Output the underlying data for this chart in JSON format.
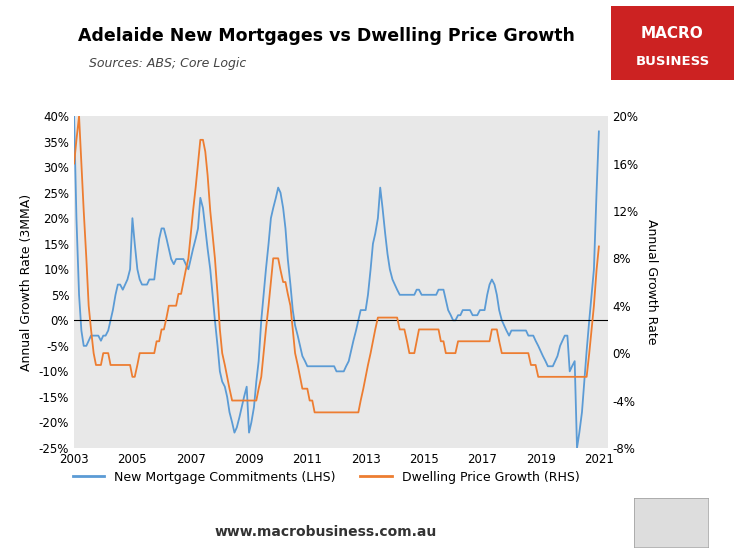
{
  "title": "Adelaide New Mortgages vs Dwelling Price Growth",
  "subtitle": "Sources: ABS; Core Logic",
  "ylabel_left": "Annual Growth Rate (3MMA)",
  "ylabel_right": "Annual Growth Rate",
  "ylim_left": [
    -25,
    40
  ],
  "ylim_right": [
    -8,
    20
  ],
  "yticks_left": [
    -25,
    -20,
    -15,
    -10,
    -5,
    0,
    5,
    10,
    15,
    20,
    25,
    30,
    35,
    40
  ],
  "yticks_right": [
    -8,
    -4,
    0,
    4,
    8,
    12,
    16,
    20
  ],
  "background_color": "#e8e8e8",
  "figure_background": "#ffffff",
  "lhs_color": "#5B9BD5",
  "rhs_color": "#ED7D31",
  "watermark": "www.macrobusiness.com.au",
  "legend_lhs": "New Mortgage Commitments (LHS)",
  "legend_rhs": "Dwelling Price Growth (RHS)",
  "logo_color": "#cc2222",
  "xticks": [
    2003,
    2005,
    2007,
    2009,
    2011,
    2013,
    2015,
    2017,
    2019,
    2021
  ],
  "lhs_x": [
    2003.0,
    2003.08,
    2003.17,
    2003.25,
    2003.33,
    2003.42,
    2003.5,
    2003.58,
    2003.67,
    2003.75,
    2003.83,
    2003.92,
    2004.0,
    2004.08,
    2004.17,
    2004.25,
    2004.33,
    2004.42,
    2004.5,
    2004.58,
    2004.67,
    2004.75,
    2004.83,
    2004.92,
    2005.0,
    2005.08,
    2005.17,
    2005.25,
    2005.33,
    2005.42,
    2005.5,
    2005.58,
    2005.67,
    2005.75,
    2005.83,
    2005.92,
    2006.0,
    2006.08,
    2006.17,
    2006.25,
    2006.33,
    2006.42,
    2006.5,
    2006.58,
    2006.67,
    2006.75,
    2006.83,
    2006.92,
    2007.0,
    2007.08,
    2007.17,
    2007.25,
    2007.33,
    2007.42,
    2007.5,
    2007.58,
    2007.67,
    2007.75,
    2007.83,
    2007.92,
    2008.0,
    2008.08,
    2008.17,
    2008.25,
    2008.33,
    2008.42,
    2008.5,
    2008.58,
    2008.67,
    2008.75,
    2008.83,
    2008.92,
    2009.0,
    2009.08,
    2009.17,
    2009.25,
    2009.33,
    2009.42,
    2009.5,
    2009.58,
    2009.67,
    2009.75,
    2009.83,
    2009.92,
    2010.0,
    2010.08,
    2010.17,
    2010.25,
    2010.33,
    2010.42,
    2010.5,
    2010.58,
    2010.67,
    2010.75,
    2010.83,
    2010.92,
    2011.0,
    2011.08,
    2011.17,
    2011.25,
    2011.33,
    2011.42,
    2011.5,
    2011.58,
    2011.67,
    2011.75,
    2011.83,
    2011.92,
    2012.0,
    2012.08,
    2012.17,
    2012.25,
    2012.33,
    2012.42,
    2012.5,
    2012.58,
    2012.67,
    2012.75,
    2012.83,
    2012.92,
    2013.0,
    2013.08,
    2013.17,
    2013.25,
    2013.33,
    2013.42,
    2013.5,
    2013.58,
    2013.67,
    2013.75,
    2013.83,
    2013.92,
    2014.0,
    2014.08,
    2014.17,
    2014.25,
    2014.33,
    2014.42,
    2014.5,
    2014.58,
    2014.67,
    2014.75,
    2014.83,
    2014.92,
    2015.0,
    2015.08,
    2015.17,
    2015.25,
    2015.33,
    2015.42,
    2015.5,
    2015.58,
    2015.67,
    2015.75,
    2015.83,
    2015.92,
    2016.0,
    2016.08,
    2016.17,
    2016.25,
    2016.33,
    2016.42,
    2016.5,
    2016.58,
    2016.67,
    2016.75,
    2016.83,
    2016.92,
    2017.0,
    2017.08,
    2017.17,
    2017.25,
    2017.33,
    2017.42,
    2017.5,
    2017.58,
    2017.67,
    2017.75,
    2017.83,
    2017.92,
    2018.0,
    2018.08,
    2018.17,
    2018.25,
    2018.33,
    2018.42,
    2018.5,
    2018.58,
    2018.67,
    2018.75,
    2018.83,
    2018.92,
    2019.0,
    2019.08,
    2019.17,
    2019.25,
    2019.33,
    2019.42,
    2019.5,
    2019.58,
    2019.67,
    2019.75,
    2019.83,
    2019.92,
    2020.0,
    2020.08,
    2020.17,
    2020.25,
    2020.33,
    2020.42,
    2020.5,
    2020.58,
    2020.67,
    2020.75,
    2020.83,
    2020.92,
    2021.0
  ],
  "lhs_y": [
    40,
    20,
    5,
    -2,
    -5,
    -5,
    -4,
    -3,
    -3,
    -3,
    -3,
    -4,
    -3,
    -3,
    -2,
    0,
    2,
    5,
    7,
    7,
    6,
    7,
    8,
    10,
    20,
    15,
    10,
    8,
    7,
    7,
    7,
    8,
    8,
    8,
    12,
    16,
    18,
    18,
    16,
    14,
    12,
    11,
    12,
    12,
    12,
    12,
    11,
    10,
    12,
    14,
    16,
    18,
    24,
    22,
    18,
    14,
    10,
    5,
    0,
    -5,
    -10,
    -12,
    -13,
    -15,
    -18,
    -20,
    -22,
    -21,
    -19,
    -17,
    -15,
    -13,
    -22,
    -20,
    -17,
    -12,
    -8,
    0,
    5,
    10,
    15,
    20,
    22,
    24,
    26,
    25,
    22,
    18,
    12,
    7,
    2,
    -1,
    -3,
    -5,
    -7,
    -8,
    -9,
    -9,
    -9,
    -9,
    -9,
    -9,
    -9,
    -9,
    -9,
    -9,
    -9,
    -9,
    -10,
    -10,
    -10,
    -10,
    -9,
    -8,
    -6,
    -4,
    -2,
    0,
    2,
    2,
    2,
    5,
    10,
    15,
    17,
    20,
    26,
    22,
    17,
    13,
    10,
    8,
    7,
    6,
    5,
    5,
    5,
    5,
    5,
    5,
    5,
    6,
    6,
    5,
    5,
    5,
    5,
    5,
    5,
    5,
    6,
    6,
    6,
    4,
    2,
    1,
    0,
    0,
    1,
    1,
    2,
    2,
    2,
    2,
    1,
    1,
    1,
    2,
    2,
    2,
    5,
    7,
    8,
    7,
    5,
    2,
    0,
    -1,
    -2,
    -3,
    -2,
    -2,
    -2,
    -2,
    -2,
    -2,
    -2,
    -3,
    -3,
    -3,
    -4,
    -5,
    -6,
    -7,
    -8,
    -9,
    -9,
    -9,
    -8,
    -7,
    -5,
    -4,
    -3,
    -3,
    -10,
    -9,
    -8,
    -25,
    -22,
    -18,
    -12,
    -6,
    0,
    5,
    10,
    25,
    37
  ],
  "rhs_y": [
    16,
    18,
    20,
    16,
    12,
    8,
    4,
    2,
    0,
    -1,
    -1,
    -1,
    0,
    0,
    0,
    -1,
    -1,
    -1,
    -1,
    -1,
    -1,
    -1,
    -1,
    -1,
    -2,
    -2,
    -1,
    0,
    0,
    0,
    0,
    0,
    0,
    0,
    1,
    1,
    2,
    2,
    3,
    4,
    4,
    4,
    4,
    5,
    5,
    6,
    7,
    8,
    10,
    12,
    14,
    16,
    18,
    18,
    17,
    15,
    12,
    10,
    8,
    5,
    2,
    0,
    -1,
    -2,
    -3,
    -4,
    -4,
    -4,
    -4,
    -4,
    -4,
    -4,
    -4,
    -4,
    -4,
    -4,
    -3,
    -2,
    0,
    2,
    4,
    6,
    8,
    8,
    8,
    7,
    6,
    6,
    5,
    4,
    2,
    0,
    -1,
    -2,
    -3,
    -3,
    -3,
    -4,
    -4,
    -5,
    -5,
    -5,
    -5,
    -5,
    -5,
    -5,
    -5,
    -5,
    -5,
    -5,
    -5,
    -5,
    -5,
    -5,
    -5,
    -5,
    -5,
    -5,
    -4,
    -3,
    -2,
    -1,
    0,
    1,
    2,
    3,
    3,
    3,
    3,
    3,
    3,
    3,
    3,
    3,
    2,
    2,
    2,
    1,
    0,
    0,
    0,
    1,
    2,
    2,
    2,
    2,
    2,
    2,
    2,
    2,
    2,
    1,
    1,
    0,
    0,
    0,
    0,
    0,
    1,
    1,
    1,
    1,
    1,
    1,
    1,
    1,
    1,
    1,
    1,
    1,
    1,
    1,
    2,
    2,
    2,
    1,
    0,
    0,
    0,
    0,
    0,
    0,
    0,
    0,
    0,
    0,
    0,
    0,
    -1,
    -1,
    -1,
    -2,
    -2,
    -2,
    -2,
    -2,
    -2,
    -2,
    -2,
    -2,
    -2,
    -2,
    -2,
    -2,
    -2,
    -2,
    -2,
    -2,
    -2,
    -2,
    -2,
    -2,
    0,
    2,
    4,
    7,
    9
  ]
}
